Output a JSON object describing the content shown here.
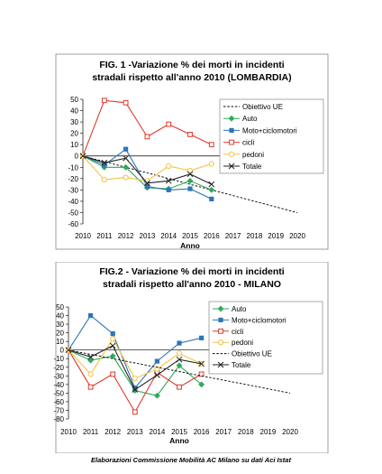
{
  "footer": "Elaborazioni Commissione Mobilità AC Milano su dati Aci Istat",
  "chart_data": [
    {
      "type": "line",
      "title": "FIG. 1  -Variazione % dei morti in incidenti stradali rispetto all'anno 2010 (LOMBARDIA)",
      "title_lines": [
        "FIG. 1  -Variazione % dei morti in incidenti",
        "stradali rispetto all'anno 2010 (LOMBARDIA)"
      ],
      "xlabel": "Anno",
      "ylabel": "",
      "x": [
        2010,
        2011,
        2012,
        2013,
        2014,
        2015,
        2016,
        2017,
        2018,
        2019,
        2020
      ],
      "ylim": [
        -60,
        50
      ],
      "yticks": [
        50,
        40,
        30,
        20,
        10,
        0,
        -10,
        -20,
        -30,
        -40,
        -50,
        -60
      ],
      "legend_position": "right",
      "grid": "none",
      "series": [
        {
          "name": "Obiettivo UE",
          "color": "#000000",
          "dash": true,
          "marker": "none",
          "values": [
            0,
            -5,
            -10,
            -15,
            -20,
            -25,
            -30,
            -35,
            -40,
            -45,
            -50
          ]
        },
        {
          "name": "Auto",
          "color": "#2eaa5c",
          "marker": "diamond",
          "values": [
            0,
            -10,
            -10,
            -28,
            -29,
            -22,
            -30,
            null,
            null,
            null,
            null
          ]
        },
        {
          "name": "Moto+ciclomotori",
          "color": "#2e75b6",
          "marker": "square",
          "values": [
            0,
            -8,
            6,
            -27,
            -30,
            -29,
            -38,
            null,
            null,
            null,
            null
          ]
        },
        {
          "name": "cicli",
          "color": "#e03a2e",
          "marker": "square-open",
          "values": [
            0,
            49,
            47,
            17,
            28,
            19,
            10,
            null,
            null,
            null,
            null
          ]
        },
        {
          "name": "pedoni",
          "color": "#f5c342",
          "marker": "circle-open",
          "values": [
            0,
            -21,
            -19,
            -22,
            -9,
            -13,
            -7,
            null,
            null,
            null,
            null
          ]
        },
        {
          "name": "Totale",
          "color": "#222222",
          "marker": "x",
          "values": [
            0,
            -6,
            -2,
            -24,
            -22,
            -16,
            -25,
            null,
            null,
            null,
            null
          ]
        }
      ]
    },
    {
      "type": "line",
      "title": "FIG.2 -  Variazione % dei morti in incidenti stradali rispetto all'anno 2010 - MILANO",
      "title_lines": [
        "FIG.2 -  Variazione % dei morti in incidenti",
        "stradali rispetto all'anno 2010 - MILANO"
      ],
      "xlabel": "Anno",
      "ylabel": "",
      "x": [
        2010,
        2011,
        2012,
        2013,
        2014,
        2015,
        2016,
        2017,
        2018,
        2019,
        2020
      ],
      "ylim": [
        -80,
        50
      ],
      "yticks": [
        50,
        40,
        30,
        20,
        10,
        0,
        -10,
        -20,
        -30,
        -40,
        -50,
        -60,
        -70,
        -80
      ],
      "legend_position": "right",
      "grid": "none",
      "series": [
        {
          "name": "Auto",
          "color": "#2eaa5c",
          "marker": "diamond",
          "values": [
            0,
            -12,
            -7,
            -47,
            -53,
            -18,
            -40,
            null,
            null,
            null,
            null
          ]
        },
        {
          "name": "Moto+ciclomotori",
          "color": "#2e75b6",
          "marker": "square",
          "values": [
            0,
            40,
            19,
            -44,
            -13,
            8,
            14,
            null,
            null,
            null,
            null
          ]
        },
        {
          "name": "cicli",
          "color": "#e03a2e",
          "marker": "square-open",
          "values": [
            0,
            -43,
            -28,
            -72,
            -26,
            -43,
            -28,
            null,
            null,
            null,
            null
          ]
        },
        {
          "name": "pedoni",
          "color": "#f5c342",
          "marker": "circle-open",
          "values": [
            0,
            -28,
            13,
            -33,
            -22,
            -4,
            -16,
            null,
            null,
            null,
            null
          ]
        },
        {
          "name": "Obiettivo UE",
          "color": "#000000",
          "dash": true,
          "marker": "none",
          "values": [
            0,
            -5,
            -10,
            -15,
            -20,
            -25,
            -30,
            -35,
            -40,
            -45,
            -50
          ]
        },
        {
          "name": "Totale",
          "color": "#222222",
          "marker": "x",
          "values": [
            0,
            -8,
            5,
            -46,
            -29,
            -11,
            -16,
            null,
            null,
            null,
            null
          ]
        }
      ]
    }
  ]
}
